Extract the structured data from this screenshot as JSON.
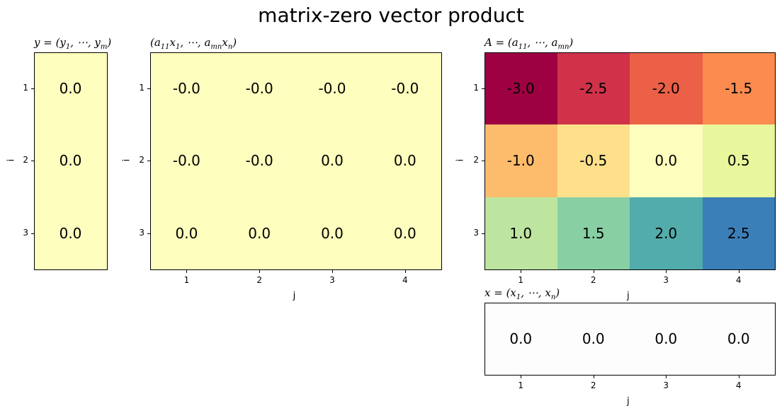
{
  "chart_data": {
    "type": "heatmap",
    "title": "matrix-zero vector product",
    "colormap": "Spectral",
    "vmin": -3.0,
    "vmax": 2.5,
    "panels": [
      {
        "id": "y",
        "title": "y = (y1, ⋯, ym)",
        "title_parts": {
          "pre": "y = (y",
          "s1": "1",
          "mid": ", ⋯, y",
          "s2": "m",
          "post": ")"
        },
        "ylabel": "i",
        "xlabel": "",
        "row_ticks": [
          "1",
          "2",
          "3"
        ],
        "col_ticks": [],
        "values": [
          [
            "0.0"
          ],
          [
            "0.0"
          ],
          [
            "0.0"
          ]
        ],
        "colors": [
          [
            "#fefebe"
          ],
          [
            "#fefebe"
          ],
          [
            "#fefebe"
          ]
        ]
      },
      {
        "id": "ax",
        "title": "(a11x1, ⋯, amnxn)",
        "title_parts": {
          "pre": "(a",
          "s1": "11",
          "mid": "x",
          "s2": "1",
          "mid2": ", ⋯, a",
          "s3": "mn",
          "mid3": "x",
          "s4": "n",
          "post": ")"
        },
        "ylabel": "i",
        "xlabel": "j",
        "row_ticks": [
          "1",
          "2",
          "3"
        ],
        "col_ticks": [
          "1",
          "2",
          "3",
          "4"
        ],
        "values": [
          [
            "-0.0",
            "-0.0",
            "-0.0",
            "-0.0"
          ],
          [
            "-0.0",
            "-0.0",
            "0.0",
            "0.0"
          ],
          [
            "0.0",
            "0.0",
            "0.0",
            "0.0"
          ]
        ],
        "colors": [
          [
            "#fefebe",
            "#fefebe",
            "#fefebe",
            "#fefebe"
          ],
          [
            "#fefebe",
            "#fefebe",
            "#fefebe",
            "#fefebe"
          ],
          [
            "#fefebe",
            "#fefebe",
            "#fefebe",
            "#fefebe"
          ]
        ]
      },
      {
        "id": "A",
        "title": "A = (a11, ⋯, amn)",
        "title_parts": {
          "pre": "A = (a",
          "s1": "11",
          "mid": ", ⋯, a",
          "s2": "mn",
          "post": ")"
        },
        "ylabel": "i",
        "xlabel": "j",
        "row_ticks": [
          "1",
          "2",
          "3"
        ],
        "col_ticks": [
          "1",
          "2",
          "3",
          "4"
        ],
        "values": [
          [
            "-3.0",
            "-2.5",
            "-2.0",
            "-1.5"
          ],
          [
            "-1.0",
            "-0.5",
            "0.0",
            "0.5"
          ],
          [
            "1.0",
            "1.5",
            "2.0",
            "2.5"
          ]
        ],
        "colors": [
          [
            "#9e0142",
            "#cf3249",
            "#eb6046",
            "#fb8b4f"
          ],
          [
            "#fdbb6c",
            "#fee08b",
            "#fefebe",
            "#e8f69c"
          ],
          [
            "#bee5a0",
            "#88d0a4",
            "#52acab",
            "#3b7fb9"
          ]
        ]
      },
      {
        "id": "x",
        "title": "x = (x1, ⋯, xn)",
        "title_parts": {
          "pre": "x = (x",
          "s1": "1",
          "mid": ", ⋯, x",
          "s2": "n",
          "post": ")"
        },
        "ylabel": "",
        "xlabel": "j",
        "row_ticks": [],
        "col_ticks": [
          "1",
          "2",
          "3",
          "4"
        ],
        "values": [
          [
            "0.0",
            "0.0",
            "0.0",
            "0.0"
          ]
        ],
        "colors": [
          [
            "#fdfdfd",
            "#fdfdfd",
            "#fdfdfd",
            "#fdfdfd"
          ]
        ]
      }
    ]
  }
}
